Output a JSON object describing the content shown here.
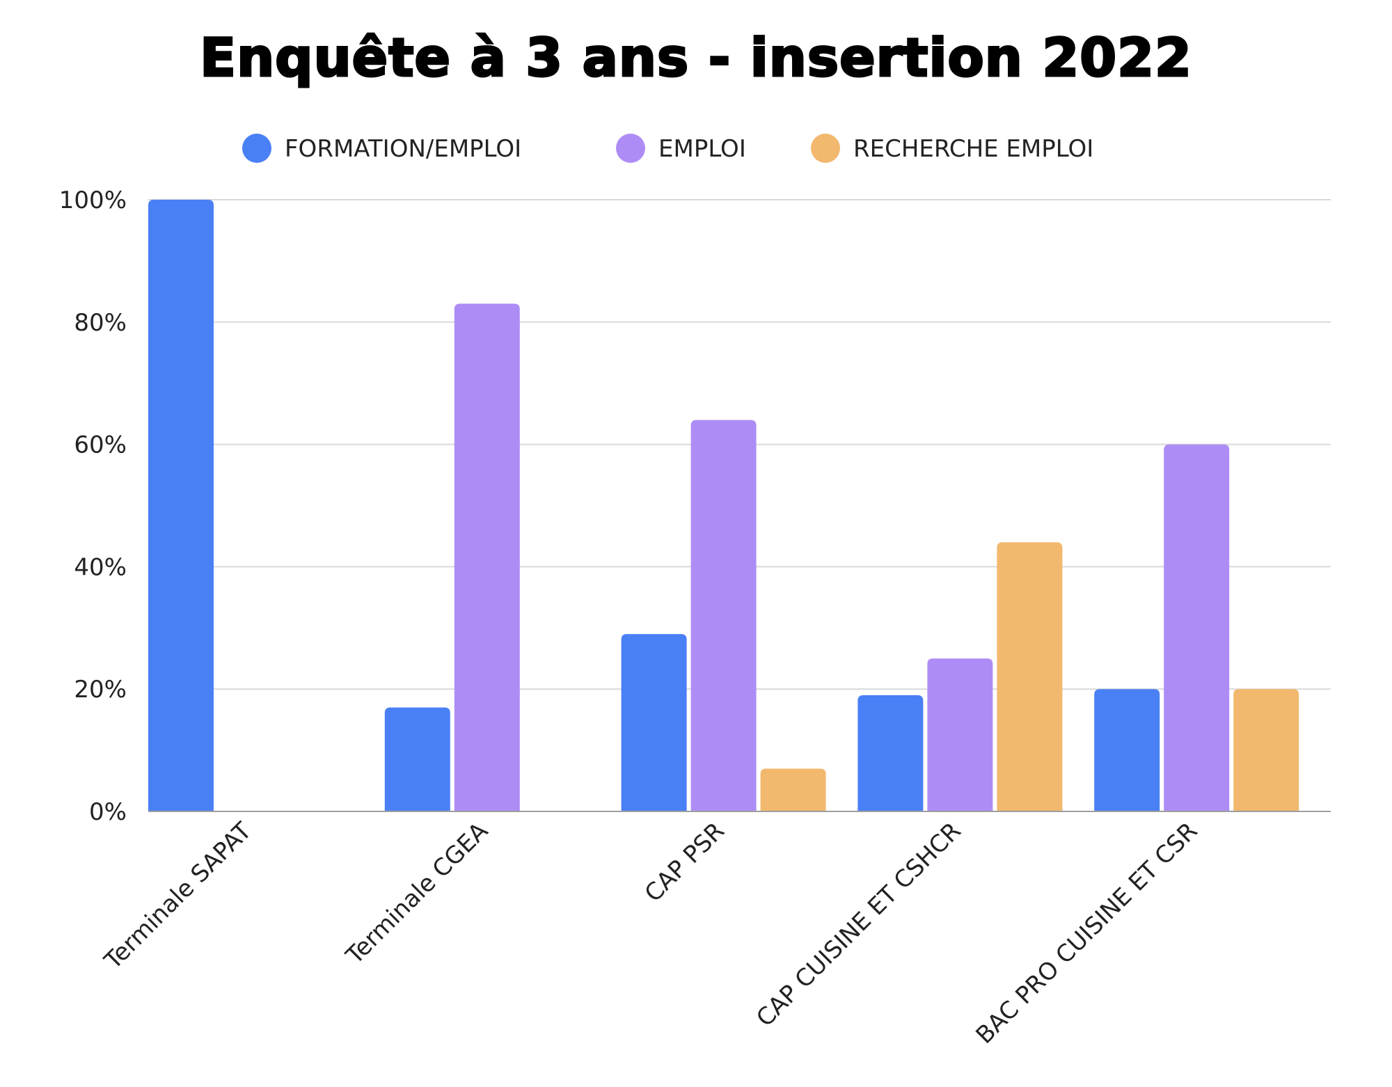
{
  "chart_data": {
    "type": "bar",
    "title": "Enquête à 3 ans - insertion 2022",
    "xlabel": "",
    "ylabel": "",
    "ylim": [
      0,
      100
    ],
    "yticks": [
      "0%",
      "20%",
      "40%",
      "60%",
      "80%",
      "100%"
    ],
    "ytick_values": [
      0,
      20,
      40,
      60,
      80,
      100
    ],
    "grid": true,
    "legend_position": "top-center",
    "categories": [
      "Terminale SAPAT",
      "Terminale CGEA",
      "CAP PSR",
      "CAP CUISINE ET CSHCR",
      "BAC PRO CUISINE ET CSR"
    ],
    "series": [
      {
        "name": "FORMATION/EMPLOI",
        "color": "#4a80f5",
        "values": [
          100,
          17,
          29,
          19,
          20
        ]
      },
      {
        "name": "EMPLOI",
        "color": "#ad8df5",
        "values": [
          0,
          83,
          64,
          25,
          60
        ]
      },
      {
        "name": "RECHERCHE EMPLOI",
        "color": "#f2b86e",
        "values": [
          0,
          0,
          7,
          44,
          20
        ]
      }
    ]
  }
}
